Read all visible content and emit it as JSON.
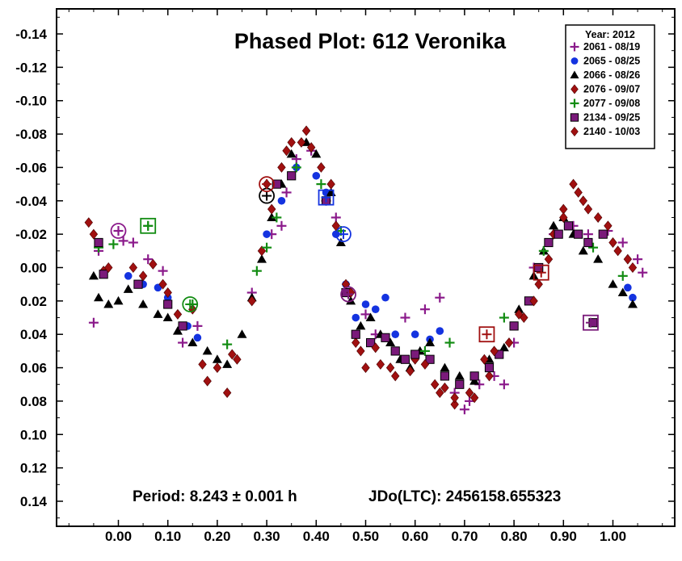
{
  "chart_data": {
    "type": "scatter",
    "title": "Phased Plot: 612 Veronika",
    "period_label": "Period: 8.243 ± 0.001 h",
    "epoch_label": "JDo(LTC): 2456158.655323",
    "xlabel": "",
    "ylabel": "",
    "xlim": [
      -0.125,
      1.125
    ],
    "ylim": [
      0.155,
      -0.155
    ],
    "y_inverted": true,
    "x_ticks": [
      "0.00",
      "0.10",
      "0.20",
      "0.30",
      "0.40",
      "0.50",
      "0.60",
      "0.70",
      "0.80",
      "0.90",
      "1.00"
    ],
    "y_ticks": [
      "-0.14",
      "-0.12",
      "-0.10",
      "-0.08",
      "-0.06",
      "-0.04",
      "-0.02",
      "0.00",
      "0.02",
      "0.04",
      "0.06",
      "0.08",
      "0.10",
      "0.12",
      "0.14"
    ],
    "grid": false,
    "legend": {
      "title": "Year: 2012",
      "position": "top-right"
    },
    "series": [
      {
        "name": "2061 - 08/19",
        "marker": "plus",
        "color": "#8B1A8B",
        "points": [
          [
            -0.05,
            0.033
          ],
          [
            -0.04,
            -0.01
          ],
          [
            0.0,
            -0.022
          ],
          [
            0.01,
            -0.016
          ],
          [
            0.03,
            -0.015
          ],
          [
            0.06,
            -0.005
          ],
          [
            0.09,
            0.002
          ],
          [
            0.13,
            0.045
          ],
          [
            0.16,
            0.035
          ],
          [
            0.27,
            0.015
          ],
          [
            0.31,
            -0.02
          ],
          [
            0.33,
            -0.025
          ],
          [
            0.34,
            -0.045
          ],
          [
            0.36,
            -0.065
          ],
          [
            0.39,
            -0.07
          ],
          [
            0.42,
            -0.04
          ],
          [
            0.44,
            -0.03
          ],
          [
            0.5,
            0.028
          ],
          [
            0.52,
            0.04
          ],
          [
            0.58,
            0.03
          ],
          [
            0.62,
            0.025
          ],
          [
            0.65,
            0.018
          ],
          [
            0.68,
            0.075
          ],
          [
            0.7,
            0.085
          ],
          [
            0.71,
            0.08
          ],
          [
            0.73,
            0.07
          ],
          [
            0.76,
            0.065
          ],
          [
            0.78,
            0.07
          ],
          [
            0.8,
            0.045
          ],
          [
            0.84,
            0.0
          ],
          [
            0.88,
            -0.02
          ],
          [
            0.92,
            -0.025
          ],
          [
            0.95,
            -0.02
          ],
          [
            0.99,
            -0.022
          ],
          [
            1.02,
            -0.015
          ],
          [
            1.05,
            -0.005
          ],
          [
            1.06,
            0.003
          ]
        ]
      },
      {
        "name": "2065 - 08/25",
        "marker": "circle",
        "color": "#1433E0",
        "points": [
          [
            0.02,
            0.005
          ],
          [
            0.05,
            0.01
          ],
          [
            0.08,
            0.012
          ],
          [
            0.1,
            0.018
          ],
          [
            0.14,
            0.035
          ],
          [
            0.16,
            0.042
          ],
          [
            0.3,
            -0.02
          ],
          [
            0.33,
            -0.04
          ],
          [
            0.36,
            -0.06
          ],
          [
            0.4,
            -0.055
          ],
          [
            0.42,
            -0.045
          ],
          [
            0.44,
            -0.02
          ],
          [
            0.46,
            0.01
          ],
          [
            0.48,
            0.03
          ],
          [
            0.5,
            0.022
          ],
          [
            0.52,
            0.025
          ],
          [
            0.54,
            0.018
          ],
          [
            0.56,
            0.04
          ],
          [
            0.6,
            0.04
          ],
          [
            0.63,
            0.043
          ],
          [
            0.65,
            0.038
          ],
          [
            1.03,
            0.012
          ],
          [
            1.04,
            0.018
          ]
        ]
      },
      {
        "name": "2066 - 08/26",
        "marker": "triangle",
        "color": "#000000",
        "points": [
          [
            -0.05,
            0.005
          ],
          [
            -0.04,
            0.018
          ],
          [
            -0.02,
            0.022
          ],
          [
            0.0,
            0.02
          ],
          [
            0.02,
            0.013
          ],
          [
            0.05,
            0.022
          ],
          [
            0.08,
            0.028
          ],
          [
            0.1,
            0.03
          ],
          [
            0.12,
            0.038
          ],
          [
            0.15,
            0.045
          ],
          [
            0.18,
            0.05
          ],
          [
            0.2,
            0.055
          ],
          [
            0.22,
            0.058
          ],
          [
            0.25,
            0.04
          ],
          [
            0.27,
            0.018
          ],
          [
            0.29,
            -0.005
          ],
          [
            0.31,
            -0.03
          ],
          [
            0.33,
            -0.05
          ],
          [
            0.35,
            -0.068
          ],
          [
            0.38,
            -0.075
          ],
          [
            0.4,
            -0.068
          ],
          [
            0.43,
            -0.045
          ],
          [
            0.45,
            -0.015
          ],
          [
            0.47,
            0.02
          ],
          [
            0.49,
            0.035
          ],
          [
            0.51,
            0.03
          ],
          [
            0.53,
            0.04
          ],
          [
            0.55,
            0.045
          ],
          [
            0.57,
            0.055
          ],
          [
            0.59,
            0.06
          ],
          [
            0.61,
            0.05
          ],
          [
            0.63,
            0.045
          ],
          [
            0.66,
            0.06
          ],
          [
            0.69,
            0.065
          ],
          [
            0.72,
            0.068
          ],
          [
            0.75,
            0.055
          ],
          [
            0.78,
            0.048
          ],
          [
            0.81,
            0.025
          ],
          [
            0.84,
            0.005
          ],
          [
            0.86,
            -0.01
          ],
          [
            0.88,
            -0.025
          ],
          [
            0.9,
            -0.03
          ],
          [
            0.92,
            -0.02
          ],
          [
            0.94,
            -0.01
          ],
          [
            0.97,
            -0.005
          ],
          [
            1.0,
            0.01
          ],
          [
            1.02,
            0.015
          ],
          [
            1.04,
            0.022
          ]
        ]
      },
      {
        "name": "2076 - 09/07",
        "marker": "diamond",
        "color": "#A01010",
        "points": [
          [
            -0.06,
            -0.027
          ],
          [
            -0.03,
            0.002
          ],
          [
            0.03,
            0.0
          ],
          [
            0.07,
            -0.002
          ],
          [
            0.1,
            0.015
          ],
          [
            0.15,
            0.025
          ],
          [
            0.18,
            0.068
          ],
          [
            0.22,
            0.075
          ],
          [
            0.24,
            0.055
          ],
          [
            0.27,
            0.02
          ],
          [
            0.29,
            -0.01
          ],
          [
            0.31,
            -0.035
          ],
          [
            0.33,
            -0.06
          ],
          [
            0.35,
            -0.075
          ],
          [
            0.38,
            -0.082
          ],
          [
            0.41,
            -0.06
          ],
          [
            0.44,
            -0.025
          ],
          [
            0.46,
            0.01
          ],
          [
            0.48,
            0.045
          ],
          [
            0.5,
            0.06
          ],
          [
            0.53,
            0.058
          ],
          [
            0.56,
            0.065
          ],
          [
            0.6,
            0.055
          ],
          [
            0.64,
            0.07
          ],
          [
            0.66,
            0.072
          ],
          [
            0.68,
            0.082
          ],
          [
            0.72,
            0.078
          ],
          [
            0.75,
            0.065
          ],
          [
            0.79,
            0.045
          ],
          [
            0.82,
            0.03
          ],
          [
            0.85,
            0.01
          ],
          [
            0.88,
            -0.02
          ],
          [
            0.9,
            -0.035
          ],
          [
            0.92,
            -0.05
          ],
          [
            0.94,
            -0.04
          ],
          [
            0.97,
            -0.03
          ],
          [
            1.0,
            -0.015
          ],
          [
            1.03,
            -0.005
          ]
        ]
      },
      {
        "name": "2077 - 09/08",
        "marker": "plus",
        "color": "#128C12",
        "points": [
          [
            -0.04,
            -0.012
          ],
          [
            -0.01,
            -0.014
          ],
          [
            0.06,
            -0.025
          ],
          [
            0.15,
            0.022
          ],
          [
            0.22,
            0.046
          ],
          [
            0.28,
            0.002
          ],
          [
            0.3,
            -0.012
          ],
          [
            0.32,
            -0.03
          ],
          [
            0.36,
            -0.06
          ],
          [
            0.41,
            -0.05
          ],
          [
            0.45,
            -0.022
          ],
          [
            0.62,
            0.05
          ],
          [
            0.67,
            0.045
          ],
          [
            0.78,
            0.03
          ],
          [
            0.86,
            -0.01
          ],
          [
            0.96,
            -0.012
          ],
          [
            1.02,
            0.005
          ]
        ]
      },
      {
        "name": "2134 - 09/25",
        "marker": "square",
        "color": "#7A1A7A",
        "points": [
          [
            -0.04,
            -0.015
          ],
          [
            -0.03,
            0.004
          ],
          [
            0.04,
            0.01
          ],
          [
            0.1,
            0.022
          ],
          [
            0.13,
            0.035
          ],
          [
            0.32,
            -0.05
          ],
          [
            0.35,
            -0.055
          ],
          [
            0.42,
            -0.04
          ],
          [
            0.46,
            0.015
          ],
          [
            0.48,
            0.04
          ],
          [
            0.51,
            0.045
          ],
          [
            0.54,
            0.042
          ],
          [
            0.56,
            0.05
          ],
          [
            0.58,
            0.055
          ],
          [
            0.6,
            0.052
          ],
          [
            0.63,
            0.055
          ],
          [
            0.66,
            0.065
          ],
          [
            0.69,
            0.07
          ],
          [
            0.72,
            0.065
          ],
          [
            0.75,
            0.06
          ],
          [
            0.77,
            0.052
          ],
          [
            0.8,
            0.035
          ],
          [
            0.83,
            0.02
          ],
          [
            0.85,
            0.0
          ],
          [
            0.87,
            -0.015
          ],
          [
            0.89,
            -0.02
          ],
          [
            0.91,
            -0.025
          ],
          [
            0.93,
            -0.02
          ],
          [
            0.95,
            -0.015
          ],
          [
            0.98,
            -0.02
          ],
          [
            0.96,
            0.033
          ]
        ]
      },
      {
        "name": "2140 - 10/03",
        "marker": "diamond",
        "color": "#A01010",
        "points": [
          [
            -0.05,
            -0.02
          ],
          [
            -0.02,
            0.0
          ],
          [
            0.05,
            0.005
          ],
          [
            0.09,
            0.01
          ],
          [
            0.12,
            0.028
          ],
          [
            0.17,
            0.058
          ],
          [
            0.2,
            0.06
          ],
          [
            0.23,
            0.052
          ],
          [
            0.3,
            -0.05
          ],
          [
            0.34,
            -0.07
          ],
          [
            0.37,
            -0.075
          ],
          [
            0.39,
            -0.072
          ],
          [
            0.43,
            -0.05
          ],
          [
            0.47,
            0.015
          ],
          [
            0.49,
            0.05
          ],
          [
            0.52,
            0.048
          ],
          [
            0.55,
            0.06
          ],
          [
            0.59,
            0.062
          ],
          [
            0.62,
            0.058
          ],
          [
            0.65,
            0.075
          ],
          [
            0.68,
            0.078
          ],
          [
            0.71,
            0.075
          ],
          [
            0.74,
            0.055
          ],
          [
            0.76,
            0.05
          ],
          [
            0.81,
            0.028
          ],
          [
            0.84,
            0.02
          ],
          [
            0.87,
            -0.005
          ],
          [
            0.9,
            -0.03
          ],
          [
            0.93,
            -0.045
          ],
          [
            0.95,
            -0.035
          ],
          [
            0.99,
            -0.025
          ],
          [
            1.01,
            -0.01
          ],
          [
            1.04,
            0.0
          ]
        ]
      }
    ],
    "highlighted": [
      {
        "x": 0.0,
        "y": -0.022,
        "shape": "circle",
        "color": "#8B1A8B"
      },
      {
        "x": 0.06,
        "y": -0.025,
        "shape": "square",
        "color": "#128C12"
      },
      {
        "x": 0.145,
        "y": 0.022,
        "shape": "circle",
        "color": "#128C12"
      },
      {
        "x": 0.3,
        "y": -0.043,
        "shape": "circle",
        "color": "#000000"
      },
      {
        "x": 0.3,
        "y": -0.05,
        "shape": "circle",
        "color": "#A01010"
      },
      {
        "x": 0.42,
        "y": -0.042,
        "shape": "square",
        "color": "#1433E0"
      },
      {
        "x": 0.455,
        "y": -0.02,
        "shape": "circle",
        "color": "#1433E0"
      },
      {
        "x": 0.465,
        "y": 0.016,
        "shape": "circle",
        "color": "#7A1A7A"
      },
      {
        "x": 0.745,
        "y": 0.04,
        "shape": "square",
        "color": "#A01010"
      },
      {
        "x": 0.855,
        "y": 0.003,
        "shape": "square",
        "color": "#A01010"
      },
      {
        "x": 0.955,
        "y": 0.033,
        "shape": "square",
        "color": "#7A1A7A"
      }
    ]
  }
}
